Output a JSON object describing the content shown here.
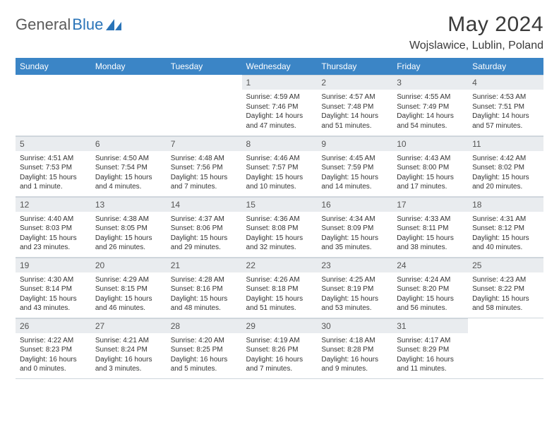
{
  "brand": {
    "part1": "General",
    "part2": "Blue"
  },
  "title": "May 2024",
  "location": "Wojslawice, Lublin, Poland",
  "colors": {
    "header_bg": "#3b85c6",
    "header_fg": "#ffffff",
    "daynum_bg": "#e9ecef",
    "border": "#cfd6dc",
    "brand_blue": "#2a74b8"
  },
  "weekdays": [
    "Sunday",
    "Monday",
    "Tuesday",
    "Wednesday",
    "Thursday",
    "Friday",
    "Saturday"
  ],
  "weeks": [
    [
      null,
      null,
      null,
      {
        "n": "1",
        "sr": "4:59 AM",
        "ss": "7:46 PM",
        "dl": "14 hours and 47 minutes."
      },
      {
        "n": "2",
        "sr": "4:57 AM",
        "ss": "7:48 PM",
        "dl": "14 hours and 51 minutes."
      },
      {
        "n": "3",
        "sr": "4:55 AM",
        "ss": "7:49 PM",
        "dl": "14 hours and 54 minutes."
      },
      {
        "n": "4",
        "sr": "4:53 AM",
        "ss": "7:51 PM",
        "dl": "14 hours and 57 minutes."
      }
    ],
    [
      {
        "n": "5",
        "sr": "4:51 AM",
        "ss": "7:53 PM",
        "dl": "15 hours and 1 minute."
      },
      {
        "n": "6",
        "sr": "4:50 AM",
        "ss": "7:54 PM",
        "dl": "15 hours and 4 minutes."
      },
      {
        "n": "7",
        "sr": "4:48 AM",
        "ss": "7:56 PM",
        "dl": "15 hours and 7 minutes."
      },
      {
        "n": "8",
        "sr": "4:46 AM",
        "ss": "7:57 PM",
        "dl": "15 hours and 10 minutes."
      },
      {
        "n": "9",
        "sr": "4:45 AM",
        "ss": "7:59 PM",
        "dl": "15 hours and 14 minutes."
      },
      {
        "n": "10",
        "sr": "4:43 AM",
        "ss": "8:00 PM",
        "dl": "15 hours and 17 minutes."
      },
      {
        "n": "11",
        "sr": "4:42 AM",
        "ss": "8:02 PM",
        "dl": "15 hours and 20 minutes."
      }
    ],
    [
      {
        "n": "12",
        "sr": "4:40 AM",
        "ss": "8:03 PM",
        "dl": "15 hours and 23 minutes."
      },
      {
        "n": "13",
        "sr": "4:38 AM",
        "ss": "8:05 PM",
        "dl": "15 hours and 26 minutes."
      },
      {
        "n": "14",
        "sr": "4:37 AM",
        "ss": "8:06 PM",
        "dl": "15 hours and 29 minutes."
      },
      {
        "n": "15",
        "sr": "4:36 AM",
        "ss": "8:08 PM",
        "dl": "15 hours and 32 minutes."
      },
      {
        "n": "16",
        "sr": "4:34 AM",
        "ss": "8:09 PM",
        "dl": "15 hours and 35 minutes."
      },
      {
        "n": "17",
        "sr": "4:33 AM",
        "ss": "8:11 PM",
        "dl": "15 hours and 38 minutes."
      },
      {
        "n": "18",
        "sr": "4:31 AM",
        "ss": "8:12 PM",
        "dl": "15 hours and 40 minutes."
      }
    ],
    [
      {
        "n": "19",
        "sr": "4:30 AM",
        "ss": "8:14 PM",
        "dl": "15 hours and 43 minutes."
      },
      {
        "n": "20",
        "sr": "4:29 AM",
        "ss": "8:15 PM",
        "dl": "15 hours and 46 minutes."
      },
      {
        "n": "21",
        "sr": "4:28 AM",
        "ss": "8:16 PM",
        "dl": "15 hours and 48 minutes."
      },
      {
        "n": "22",
        "sr": "4:26 AM",
        "ss": "8:18 PM",
        "dl": "15 hours and 51 minutes."
      },
      {
        "n": "23",
        "sr": "4:25 AM",
        "ss": "8:19 PM",
        "dl": "15 hours and 53 minutes."
      },
      {
        "n": "24",
        "sr": "4:24 AM",
        "ss": "8:20 PM",
        "dl": "15 hours and 56 minutes."
      },
      {
        "n": "25",
        "sr": "4:23 AM",
        "ss": "8:22 PM",
        "dl": "15 hours and 58 minutes."
      }
    ],
    [
      {
        "n": "26",
        "sr": "4:22 AM",
        "ss": "8:23 PM",
        "dl": "16 hours and 0 minutes."
      },
      {
        "n": "27",
        "sr": "4:21 AM",
        "ss": "8:24 PM",
        "dl": "16 hours and 3 minutes."
      },
      {
        "n": "28",
        "sr": "4:20 AM",
        "ss": "8:25 PM",
        "dl": "16 hours and 5 minutes."
      },
      {
        "n": "29",
        "sr": "4:19 AM",
        "ss": "8:26 PM",
        "dl": "16 hours and 7 minutes."
      },
      {
        "n": "30",
        "sr": "4:18 AM",
        "ss": "8:28 PM",
        "dl": "16 hours and 9 minutes."
      },
      {
        "n": "31",
        "sr": "4:17 AM",
        "ss": "8:29 PM",
        "dl": "16 hours and 11 minutes."
      },
      null
    ]
  ],
  "labels": {
    "sunrise": "Sunrise:",
    "sunset": "Sunset:",
    "daylight": "Daylight:"
  }
}
